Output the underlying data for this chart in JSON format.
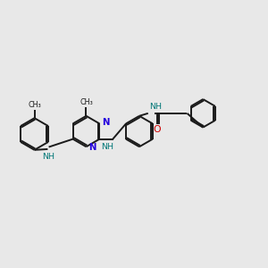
{
  "bg_color": "#e8e8e8",
  "bond_color": "#1a1a1a",
  "N_color": "#2200dd",
  "NH_color": "#007777",
  "O_color": "#cc0000",
  "lw": 1.4,
  "fs": 6.8,
  "fig_w": 3.0,
  "fig_h": 3.0,
  "dpi": 100,
  "xlim": [
    0,
    10
  ],
  "ylim": [
    2,
    8
  ]
}
